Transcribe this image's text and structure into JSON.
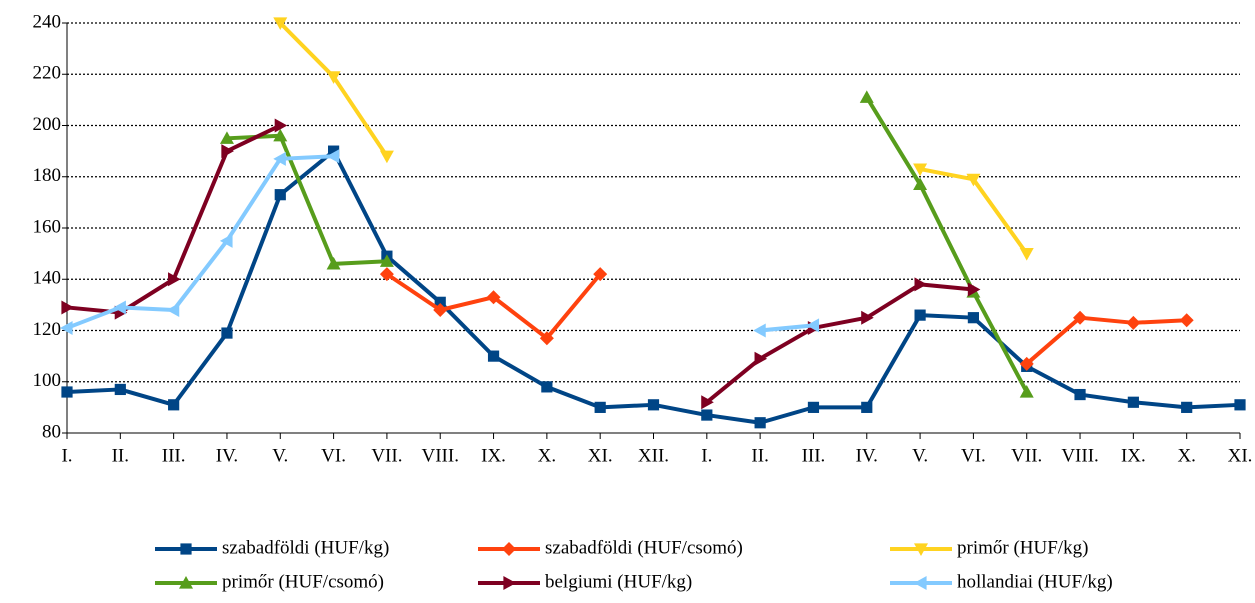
{
  "chart_data": {
    "type": "line",
    "categories": [
      "I.",
      "II.",
      "III.",
      "IV.",
      "V.",
      "VI.",
      "VII.",
      "VIII.",
      "IX.",
      "X.",
      "XI.",
      "XII.",
      "I.",
      "II.",
      "III.",
      "IV.",
      "V.",
      "VI.",
      "VII.",
      "VIII.",
      "IX.",
      "X.",
      "XI."
    ],
    "series": [
      {
        "name": "szabadföldi (HUF/kg)",
        "color": "#004586",
        "marker": "square",
        "values": [
          96,
          97,
          91,
          119,
          173,
          190,
          149,
          131,
          110,
          98,
          90,
          91,
          87,
          84,
          90,
          90,
          126,
          125,
          106,
          95,
          92,
          90,
          91
        ]
      },
      {
        "name": "szabadföldi (HUF/csomó)",
        "color": "#ff420e",
        "marker": "diamond",
        "values": [
          null,
          null,
          null,
          null,
          null,
          null,
          142,
          128,
          133,
          117,
          142,
          null,
          null,
          null,
          null,
          null,
          null,
          null,
          107,
          125,
          123,
          124,
          null
        ]
      },
      {
        "name": "primőr (HUF/kg)",
        "color": "#ffd320",
        "marker": "triangle-down",
        "values": [
          null,
          null,
          null,
          null,
          240,
          219,
          188,
          null,
          null,
          null,
          null,
          null,
          null,
          null,
          null,
          null,
          183,
          179,
          150,
          null,
          null,
          null,
          null
        ]
      },
      {
        "name": "primőr (HUF/csomó)",
        "color": "#579d1c",
        "marker": "triangle-up",
        "values": [
          null,
          null,
          null,
          195,
          196,
          146,
          147,
          null,
          null,
          null,
          null,
          null,
          null,
          null,
          null,
          211,
          177,
          135,
          96,
          null,
          null,
          null,
          null
        ]
      },
      {
        "name": "belgiumi (HUF/kg)",
        "color": "#7e0021",
        "marker": "triangle-right",
        "values": [
          129,
          127,
          140,
          190,
          200,
          null,
          null,
          null,
          null,
          null,
          null,
          null,
          92,
          109,
          121,
          125,
          138,
          136,
          null,
          null,
          null,
          null,
          null
        ]
      },
      {
        "name": "hollandiai (HUF/kg)",
        "color": "#83caff",
        "marker": "triangle-left",
        "values": [
          121,
          129,
          128,
          155,
          187,
          188,
          null,
          null,
          null,
          null,
          null,
          null,
          null,
          120,
          122,
          null,
          null,
          null,
          null,
          null,
          null,
          null,
          null
        ]
      }
    ],
    "ylim": [
      80,
      240
    ],
    "yticks": [
      80,
      100,
      120,
      140,
      160,
      180,
      200,
      220,
      240
    ],
    "grid": true,
    "legend": "bottom"
  }
}
